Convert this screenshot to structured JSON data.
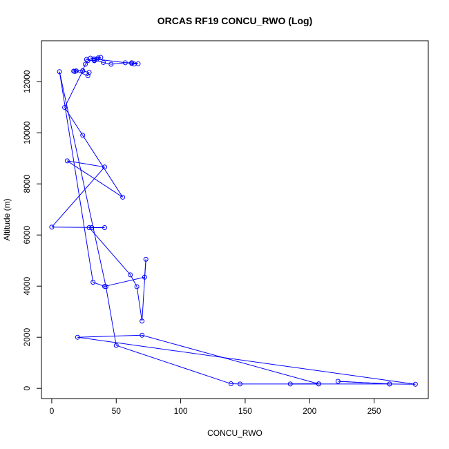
{
  "chart_data": {
    "type": "line",
    "title": "ORCAS RF19 CONCU_RWO (Log)",
    "xlabel": "CONCU_RWO",
    "ylabel": "Altitude (m)",
    "xlim": [
      -8,
      292
    ],
    "ylim": [
      -400,
      13600
    ],
    "x_ticks": [
      0,
      50,
      100,
      150,
      200,
      250
    ],
    "y_ticks": [
      0,
      2000,
      4000,
      6000,
      8000,
      10000,
      12000
    ],
    "grid": false,
    "line_color": "#0000ff",
    "marker": "open-circle",
    "series": [
      {
        "x": [
          207,
          185,
          207,
          70,
          20,
          282,
          262,
          222,
          262,
          146,
          139,
          50,
          42,
          6,
          32,
          41,
          72,
          73,
          70,
          66,
          61,
          29,
          31,
          41,
          0,
          41,
          12,
          55,
          24,
          10,
          24,
          29,
          28,
          19,
          18,
          17,
          24,
          26,
          28,
          33,
          40,
          46,
          57,
          62,
          67,
          64,
          62,
          33,
          30,
          36,
          38,
          35,
          33,
          27
        ],
        "y": [
          175,
          170,
          175,
          2080,
          2000,
          160,
          170,
          275,
          170,
          170,
          180,
          1680,
          3980,
          12390,
          4150,
          3990,
          4350,
          5050,
          2630,
          3980,
          4440,
          6290,
          6290,
          6290,
          6310,
          8660,
          8900,
          7480,
          9900,
          10990,
          12420,
          12360,
          12230,
          12420,
          12400,
          12410,
          12430,
          12680,
          12820,
          12840,
          12750,
          12680,
          12740,
          12740,
          12700,
          12690,
          12710,
          12890,
          12920,
          12930,
          12950,
          12880,
          12820,
          12870
        ]
      }
    ]
  }
}
